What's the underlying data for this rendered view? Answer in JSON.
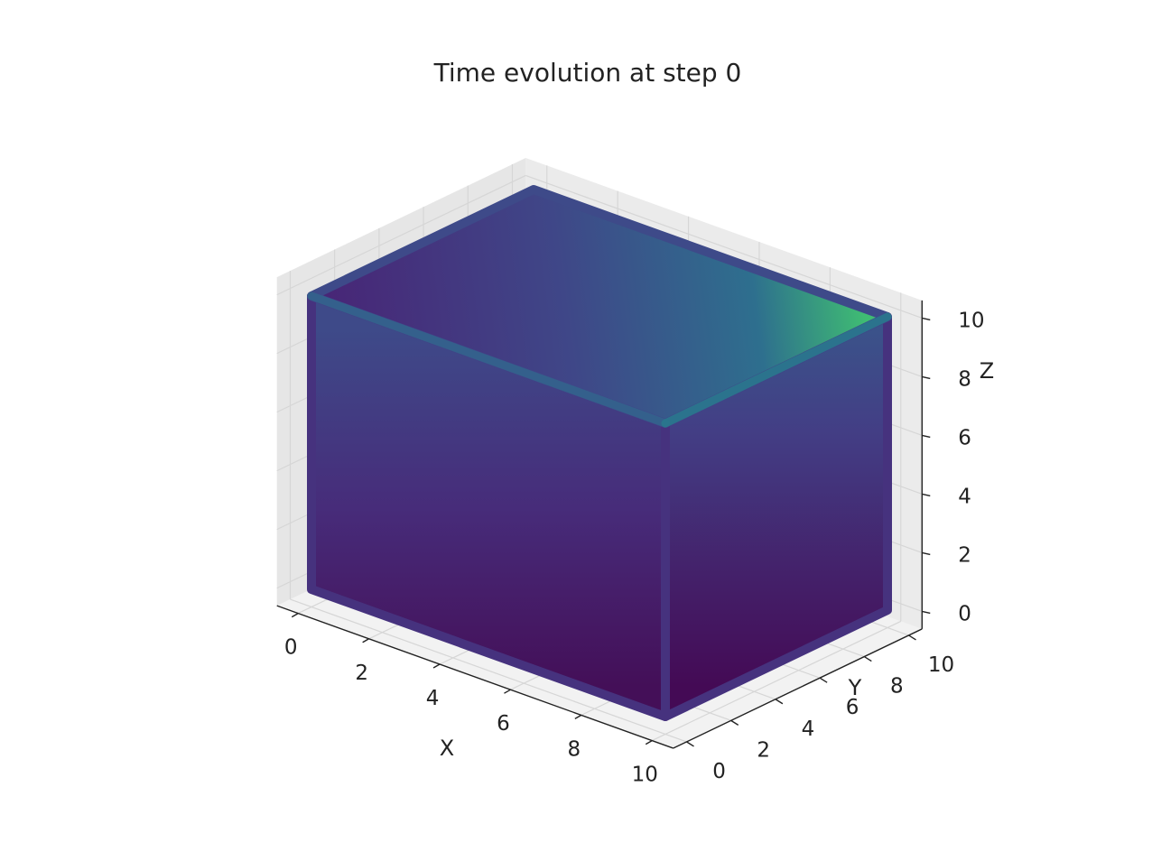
{
  "chart_data": {
    "type": "scatter3d",
    "title": "Time evolution at step 0",
    "xlabel": "X",
    "ylabel": "Y",
    "zlabel": "Z",
    "xlim": [
      0,
      10
    ],
    "ylim": [
      0,
      10
    ],
    "zlim": [
      0,
      10
    ],
    "xticks": [
      "0",
      "2",
      "4",
      "6",
      "8",
      "10"
    ],
    "yticks": [
      "0",
      "2",
      "4",
      "6",
      "8",
      "10"
    ],
    "zticks": [
      "0",
      "2",
      "4",
      "6",
      "8",
      "10"
    ],
    "grid": true,
    "colormap": "viridis",
    "description_of_data": "dense grid of points filling the cube 0–10 on every axis, colored by value",
    "colors": {
      "pane": "#f2f2f2",
      "grid": "#d6d6d6",
      "axis": "#222222"
    }
  }
}
